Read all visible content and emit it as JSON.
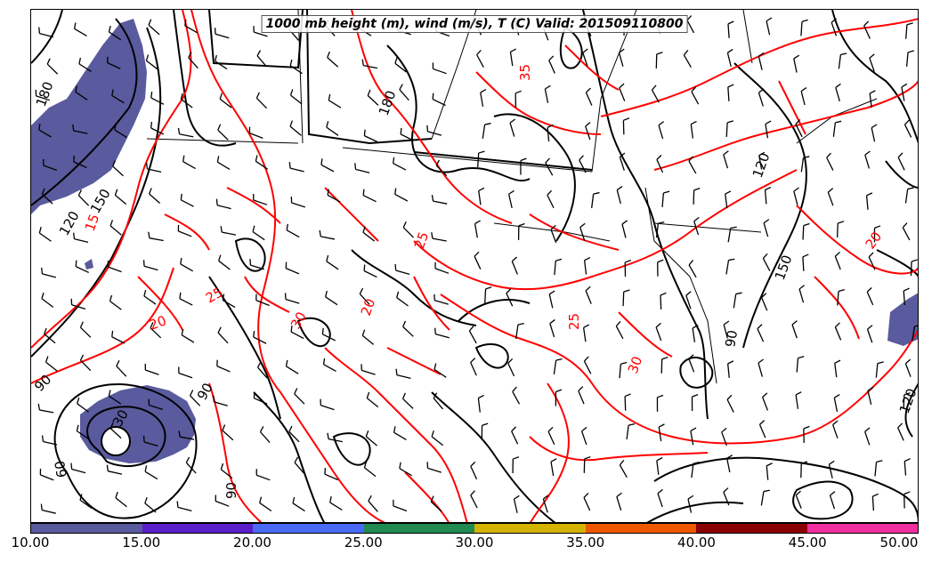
{
  "title": "1000 mb height (m), wind (m/s), T (C) Valid: 201509110800",
  "colorbar": {
    "colors": [
      "#5a5a9e",
      "#5a1fc8",
      "#4a6af8",
      "#208a50",
      "#d4b400",
      "#f05800",
      "#8a0000",
      "#f030a0"
    ],
    "ticks": [
      "10.00",
      "15.00",
      "20.00",
      "25.00",
      "30.00",
      "35.00",
      "40.00",
      "45.00",
      "50.00"
    ]
  },
  "contour_labels": {
    "height": [
      "180",
      "180",
      "150",
      "120",
      "90",
      "60",
      "30",
      "90",
      "90",
      "90",
      "120",
      "120",
      "150"
    ],
    "temperature": [
      "15",
      "20",
      "25",
      "30",
      "35",
      "25",
      "30",
      "20",
      "25",
      "20"
    ]
  },
  "colors": {
    "height_contour": "#000000",
    "temperature_contour": "#ff0000",
    "wind_speed_fill": "#5a5a9e"
  }
}
